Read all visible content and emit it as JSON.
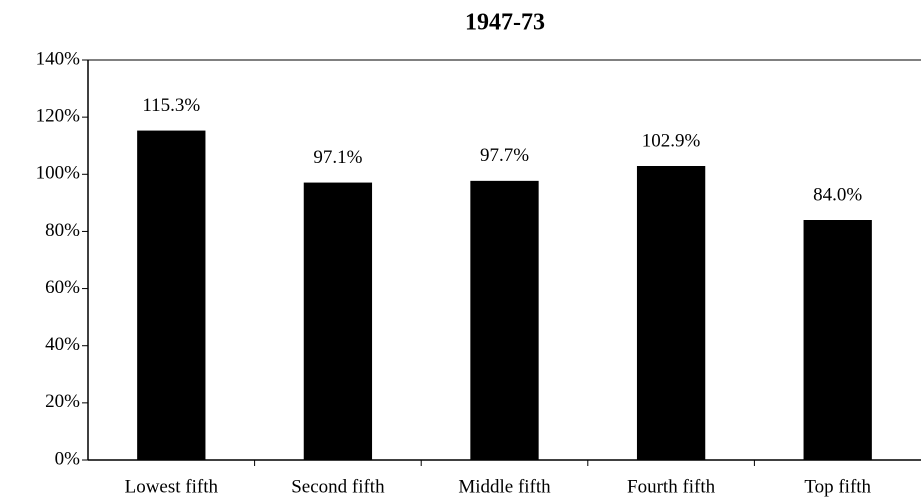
{
  "chart_data": {
    "type": "bar",
    "title": "1947-73",
    "categories": [
      "Lowest fifth",
      "Second fifth",
      "Middle fifth",
      "Fourth fifth",
      "Top fifth"
    ],
    "values": [
      115.3,
      97.1,
      97.7,
      102.9,
      84
    ],
    "value_labels": [
      "115.3%",
      "97.1%",
      "97.7%",
      "102.9%",
      "84.0%"
    ],
    "color": "#000000",
    "ylim": [
      0,
      140
    ],
    "yticks": [
      {
        "value": 0,
        "label": "0%"
      },
      {
        "value": 20,
        "label": "20%"
      },
      {
        "value": 40,
        "label": "40%"
      },
      {
        "value": 60,
        "label": "60%"
      },
      {
        "value": 80,
        "label": "80%"
      },
      {
        "value": 100,
        "label": "100%"
      },
      {
        "value": 120,
        "label": "120%"
      },
      {
        "value": 140,
        "label": "140%"
      }
    ],
    "grid": false
  }
}
